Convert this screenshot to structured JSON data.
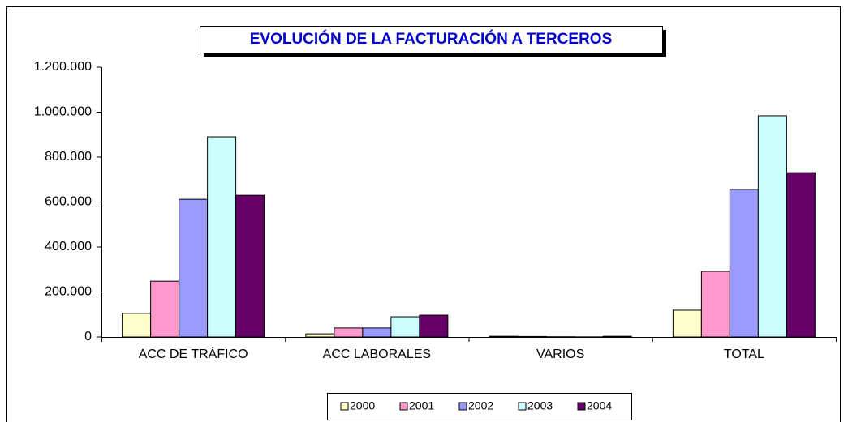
{
  "chart_data": {
    "type": "bar",
    "title": "EVOLUCIÓN DE LA FACTURACIÓN A TERCEROS",
    "categories": [
      "ACC DE TRÁFICO",
      "ACC LABORALES",
      "VARIOS",
      "TOTAL"
    ],
    "series": [
      {
        "name": "2000",
        "color": "#ffffcc",
        "values": [
          105000,
          14000,
          3000,
          119000
        ]
      },
      {
        "name": "2001",
        "color": "#ff99cc",
        "values": [
          248000,
          40000,
          2000,
          292000
        ]
      },
      {
        "name": "2002",
        "color": "#9999ff",
        "values": [
          612000,
          40000,
          1000,
          656000
        ]
      },
      {
        "name": "2003",
        "color": "#ccffff",
        "values": [
          890000,
          90000,
          500,
          984000
        ]
      },
      {
        "name": "2004",
        "color": "#660066",
        "values": [
          630000,
          97000,
          3000,
          731000
        ]
      }
    ],
    "ylim": [
      0,
      1200000
    ],
    "yticks": [
      0,
      {
        "value": 200000,
        "label": "200.000"
      },
      {
        "value": 400000,
        "label": "400.000"
      },
      {
        "value": 600000,
        "label": "600.000"
      },
      {
        "value": 800000,
        "label": "800.000"
      },
      {
        "value": 1000000,
        "label": "1.000.000"
      },
      {
        "value": 1200000,
        "label": "1.200.000"
      }
    ],
    "grid": false,
    "legend": "bottom"
  }
}
